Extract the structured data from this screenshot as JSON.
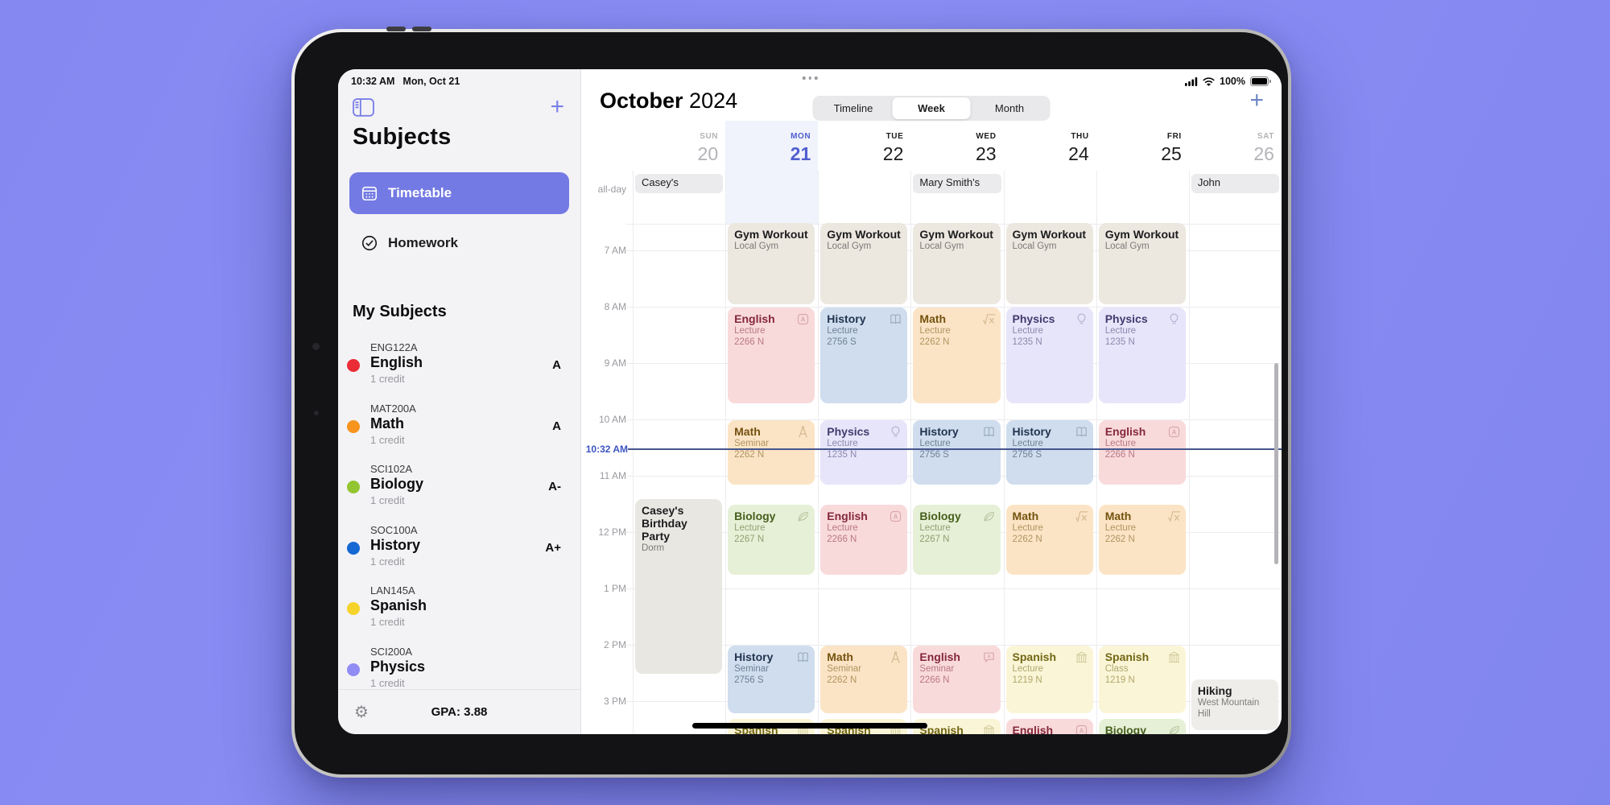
{
  "status_bar": {
    "time": "10:32 AM",
    "date": "Mon, Oct 21",
    "battery": "100%"
  },
  "colors": {
    "background": "#868af1",
    "sidebar_selected": "#737ae3",
    "sidebar_accent": "#7a80e8",
    "calendar_add": "#6d86c3",
    "today_accent": "#4f5ecf",
    "now_line": "#46558c"
  },
  "sidebar": {
    "title": "Subjects",
    "nav": [
      {
        "label": "Timetable",
        "icon": "calendar-grid-icon",
        "selected": true
      },
      {
        "label": "Homework",
        "icon": "check-circle-icon",
        "selected": false
      }
    ],
    "section_title": "My Subjects",
    "subjects": [
      {
        "code": "ENG122A",
        "name": "English",
        "credits": "1 credit",
        "grade": "A",
        "color": "#ea2c36"
      },
      {
        "code": "MAT200A",
        "name": "Math",
        "credits": "1 credit",
        "grade": "A",
        "color": "#f6941d"
      },
      {
        "code": "SCI102A",
        "name": "Biology",
        "credits": "1 credit",
        "grade": "A-",
        "color": "#93c531"
      },
      {
        "code": "SOC100A",
        "name": "History",
        "credits": "1 credit",
        "grade": "A+",
        "color": "#1668d2"
      },
      {
        "code": "LAN145A",
        "name": "Spanish",
        "credits": "1 credit",
        "grade": "",
        "color": "#f6d32a"
      },
      {
        "code": "SCI200A",
        "name": "Physics",
        "credits": "1 credit",
        "grade": "",
        "color": "#908cf4"
      }
    ],
    "footer": {
      "gpa_label": "GPA: 3.88"
    }
  },
  "event_styles": {
    "english": {
      "bg": "#f9dadb",
      "fg": "#84283a"
    },
    "history": {
      "bg": "#cfddee",
      "fg": "#233450"
    },
    "math": {
      "bg": "#fbe4c5",
      "fg": "#74520f"
    },
    "physics": {
      "bg": "#e7e5fa",
      "fg": "#433a6e"
    },
    "biology": {
      "bg": "#e6f0d7",
      "fg": "#465f1d"
    },
    "spanish": {
      "bg": "#fbf5d7",
      "fg": "#716714"
    },
    "gym": {
      "bg": "#ece8e0",
      "fg": "#1c1c1e"
    },
    "personal": {
      "bg": "#e9e7e2",
      "fg": "#1c1c1e"
    },
    "personal-light": {
      "bg": "#efede9",
      "fg": "#1c1c1e"
    }
  },
  "calendar": {
    "month": "October",
    "year": "2024",
    "view_tabs": [
      {
        "label": "Timeline",
        "selected": false
      },
      {
        "label": "Week",
        "selected": true
      },
      {
        "label": "Month",
        "selected": false
      }
    ],
    "days": [
      {
        "dow": "SUN",
        "date": "20",
        "style": "muted"
      },
      {
        "dow": "MON",
        "date": "21",
        "style": "today"
      },
      {
        "dow": "TUE",
        "date": "22",
        "style": "normal"
      },
      {
        "dow": "WED",
        "date": "23",
        "style": "normal"
      },
      {
        "dow": "THU",
        "date": "24",
        "style": "normal"
      },
      {
        "dow": "FRI",
        "date": "25",
        "style": "normal"
      },
      {
        "dow": "SAT",
        "date": "26",
        "style": "muted"
      }
    ],
    "all_day_label": "all-day",
    "all_day_events": [
      {
        "title": "Casey's",
        "day": 0
      },
      {
        "title": "Mary Smith's",
        "day": 3
      },
      {
        "title": "John",
        "day": 6
      }
    ],
    "time_labels": [
      "7 AM",
      "8 AM",
      "9 AM",
      "10 AM",
      "11 AM",
      "12 PM",
      "1 PM",
      "2 PM",
      "3 PM"
    ],
    "now_label": "10:32 AM",
    "events": [
      {
        "day": 1,
        "start": 6.5,
        "end": 8.0,
        "kind": "gym",
        "title": "Gym Workout",
        "subtitle": "Local Gym",
        "location": "",
        "icon": ""
      },
      {
        "day": 2,
        "start": 6.5,
        "end": 8.0,
        "kind": "gym",
        "title": "Gym Workout",
        "subtitle": "Local Gym",
        "location": "",
        "icon": ""
      },
      {
        "day": 3,
        "start": 6.5,
        "end": 8.0,
        "kind": "gym",
        "title": "Gym Workout",
        "subtitle": "Local Gym",
        "location": "",
        "icon": ""
      },
      {
        "day": 4,
        "start": 6.5,
        "end": 8.0,
        "kind": "gym",
        "title": "Gym Workout",
        "subtitle": "Local Gym",
        "location": "",
        "icon": ""
      },
      {
        "day": 5,
        "start": 6.5,
        "end": 8.0,
        "kind": "gym",
        "title": "Gym Workout",
        "subtitle": "Local Gym",
        "location": "",
        "icon": ""
      },
      {
        "day": 1,
        "start": 8.0,
        "end": 9.75,
        "kind": "english",
        "title": "English",
        "subtitle": "Lecture",
        "location": "2266 N",
        "icon": "translate-icon"
      },
      {
        "day": 2,
        "start": 8.0,
        "end": 9.75,
        "kind": "history",
        "title": "History",
        "subtitle": "Lecture",
        "location": "2756 S",
        "icon": "book-icon"
      },
      {
        "day": 3,
        "start": 8.0,
        "end": 9.75,
        "kind": "math",
        "title": "Math",
        "subtitle": "Lecture",
        "location": "2262 N",
        "icon": "sqrt-icon"
      },
      {
        "day": 4,
        "start": 8.0,
        "end": 9.75,
        "kind": "physics",
        "title": "Physics",
        "subtitle": "Lecture",
        "location": "1235 N",
        "icon": "bulb-icon"
      },
      {
        "day": 5,
        "start": 8.0,
        "end": 9.75,
        "kind": "physics",
        "title": "Physics",
        "subtitle": "Lecture",
        "location": "1235 N",
        "icon": "bulb-icon"
      },
      {
        "day": 1,
        "start": 10.0,
        "end": 11.2,
        "kind": "math",
        "title": "Math",
        "subtitle": "Seminar",
        "location": "2262 N",
        "icon": "compass-icon"
      },
      {
        "day": 2,
        "start": 10.0,
        "end": 11.2,
        "kind": "physics",
        "title": "Physics",
        "subtitle": "Lecture",
        "location": "1235 N",
        "icon": "bulb-icon"
      },
      {
        "day": 3,
        "start": 10.0,
        "end": 11.2,
        "kind": "history",
        "title": "History",
        "subtitle": "Lecture",
        "location": "2756 S",
        "icon": "book-icon"
      },
      {
        "day": 4,
        "start": 10.0,
        "end": 11.2,
        "kind": "history",
        "title": "History",
        "subtitle": "Lecture",
        "location": "2756 S",
        "icon": "book-icon"
      },
      {
        "day": 5,
        "start": 10.0,
        "end": 11.2,
        "kind": "english",
        "title": "English",
        "subtitle": "Lecture",
        "location": "2266 N",
        "icon": "translate-icon"
      },
      {
        "day": 0,
        "start": 11.4,
        "end": 14.55,
        "kind": "personal",
        "title": "Casey's Birthday Party",
        "subtitle": "Dorm",
        "location": "",
        "icon": ""
      },
      {
        "day": 1,
        "start": 11.5,
        "end": 12.8,
        "kind": "biology",
        "title": "Biology",
        "subtitle": "Lecture",
        "location": "2267 N",
        "icon": "leaf-icon"
      },
      {
        "day": 2,
        "start": 11.5,
        "end": 12.8,
        "kind": "english",
        "title": "English",
        "subtitle": "Lecture",
        "location": "2266 N",
        "icon": "translate-icon"
      },
      {
        "day": 3,
        "start": 11.5,
        "end": 12.8,
        "kind": "biology",
        "title": "Biology",
        "subtitle": "Lecture",
        "location": "2267 N",
        "icon": "leaf-icon"
      },
      {
        "day": 4,
        "start": 11.5,
        "end": 12.8,
        "kind": "math",
        "title": "Math",
        "subtitle": "Lecture",
        "location": "2262 N",
        "icon": "sqrt-icon"
      },
      {
        "day": 5,
        "start": 11.5,
        "end": 12.8,
        "kind": "math",
        "title": "Math",
        "subtitle": "Lecture",
        "location": "2262 N",
        "icon": "sqrt-icon"
      },
      {
        "day": 1,
        "start": 14.0,
        "end": 15.25,
        "kind": "history",
        "title": "History",
        "subtitle": "Seminar",
        "location": "2756 S",
        "icon": "book-icon"
      },
      {
        "day": 2,
        "start": 14.0,
        "end": 15.25,
        "kind": "math",
        "title": "Math",
        "subtitle": "Seminar",
        "location": "2262 N",
        "icon": "compass-icon"
      },
      {
        "day": 3,
        "start": 14.0,
        "end": 15.25,
        "kind": "english",
        "title": "English",
        "subtitle": "Seminar",
        "location": "2266 N",
        "icon": "speech-a-icon"
      },
      {
        "day": 4,
        "start": 14.0,
        "end": 15.25,
        "kind": "spanish",
        "title": "Spanish",
        "subtitle": "Lecture",
        "location": "1219 N",
        "icon": "building-icon"
      },
      {
        "day": 5,
        "start": 14.0,
        "end": 15.25,
        "kind": "spanish",
        "title": "Spanish",
        "subtitle": "Class",
        "location": "1219 N",
        "icon": "building-icon"
      },
      {
        "day": 6,
        "start": 14.6,
        "end": 15.55,
        "kind": "personal-light",
        "title": "Hiking",
        "subtitle": "West Mountain Hill",
        "location": "",
        "icon": ""
      },
      {
        "day": 1,
        "start": 15.3,
        "end": 16.6,
        "kind": "spanish",
        "title": "Spanish",
        "subtitle": "",
        "location": "",
        "icon": "building-icon"
      },
      {
        "day": 2,
        "start": 15.3,
        "end": 16.6,
        "kind": "spanish",
        "title": "Spanish",
        "subtitle": "",
        "location": "",
        "icon": "building-icon"
      },
      {
        "day": 3,
        "start": 15.3,
        "end": 16.6,
        "kind": "spanish",
        "title": "Spanish",
        "subtitle": "",
        "location": "",
        "icon": "building-icon"
      },
      {
        "day": 4,
        "start": 15.3,
        "end": 16.6,
        "kind": "english",
        "title": "English",
        "subtitle": "",
        "location": "",
        "icon": "translate-icon"
      },
      {
        "day": 5,
        "start": 15.3,
        "end": 16.6,
        "kind": "biology",
        "title": "Biology",
        "subtitle": "",
        "location": "",
        "icon": "leaf-icon"
      }
    ]
  }
}
